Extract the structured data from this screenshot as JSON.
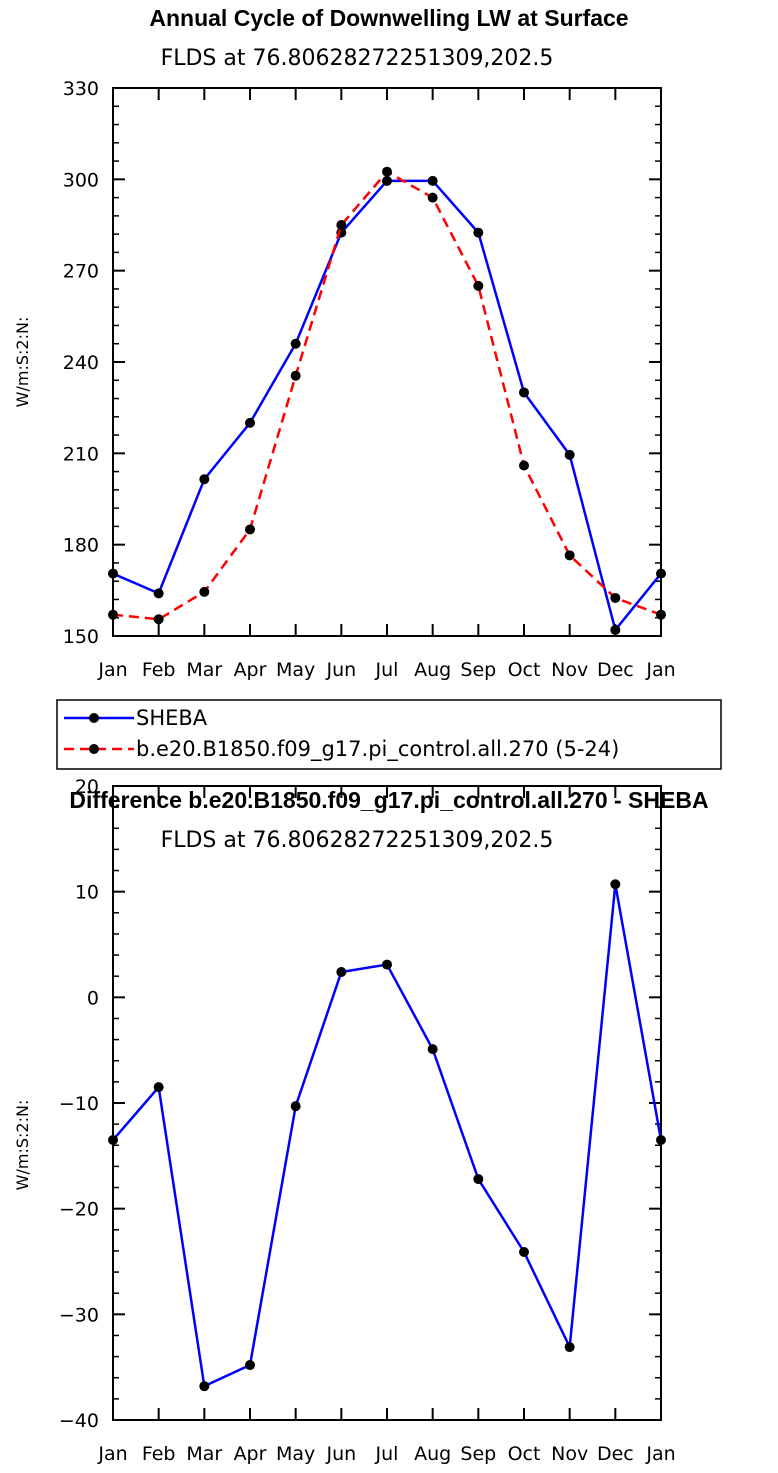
{
  "chart_data": [
    {
      "type": "line",
      "title": "Annual Cycle of Downwelling LW at Surface",
      "subtitle": "FLDS at 76.80628272251309,202.5",
      "ylabel": "W/m:S:2:N:",
      "ylim": [
        150,
        330
      ],
      "yticks": [
        150,
        180,
        210,
        240,
        270,
        300,
        330
      ],
      "categories": [
        "Jan",
        "Feb",
        "Mar",
        "Apr",
        "May",
        "Jun",
        "Jul",
        "Aug",
        "Sep",
        "Oct",
        "Nov",
        "Dec",
        "Jan"
      ],
      "series": [
        {
          "name": "SHEBA",
          "color": "#0000ff",
          "dash": "solid",
          "values": [
            170.5,
            164,
            201.5,
            220,
            246,
            282.5,
            299.5,
            299.5,
            282.5,
            230,
            209.5,
            152,
            170.5
          ]
        },
        {
          "name": "b.e20.B1850.f09_g17.pi_control.all.270 (5-24)",
          "color": "#ff0000",
          "dash": "dashed",
          "values": [
            157,
            155.5,
            164.5,
            185,
            235.5,
            285,
            302.5,
            294,
            265,
            206,
            176.5,
            162.5,
            157
          ]
        }
      ],
      "legend": "below"
    },
    {
      "type": "line",
      "title": "Difference b.e20.B1850.f09_g17.pi_control.all.270 - SHEBA",
      "subtitle": "FLDS at 76.80628272251309,202.5",
      "ylabel": "W/m:S:2:N:",
      "ylim": [
        -40,
        20
      ],
      "yticks": [
        -40,
        -30,
        -20,
        -10,
        0,
        10,
        20
      ],
      "categories": [
        "Jan",
        "Feb",
        "Mar",
        "Apr",
        "May",
        "Jun",
        "Jul",
        "Aug",
        "Sep",
        "Oct",
        "Nov",
        "Dec",
        "Jan"
      ],
      "series": [
        {
          "color": "#0000ff",
          "dash": "solid",
          "values": [
            -13.5,
            -8.5,
            -36.8,
            -34.8,
            -10.3,
            2.4,
            3.1,
            -4.9,
            -17.2,
            -24.1,
            -33.1,
            10.7,
            -13.5
          ]
        }
      ]
    }
  ]
}
